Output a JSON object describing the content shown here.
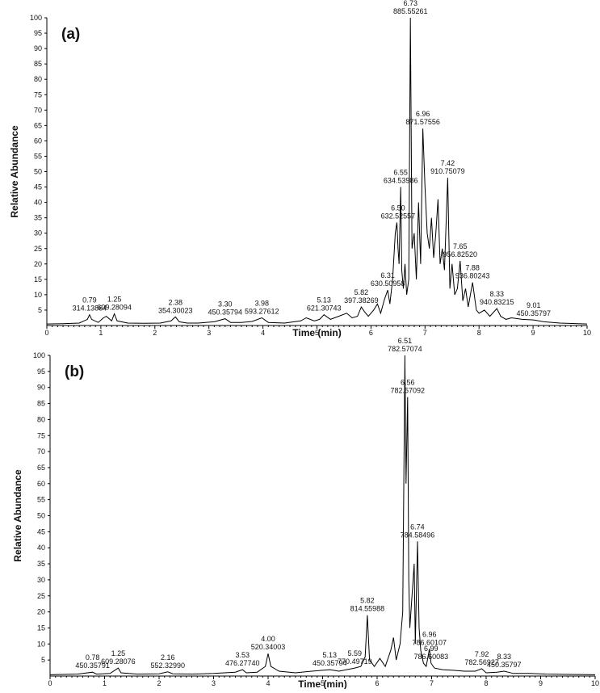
{
  "chart_data": [
    {
      "type": "line",
      "panel_label": "(a)",
      "xlabel": "Time (min)",
      "ylabel": "Relative Abundance",
      "xlim": [
        0,
        10
      ],
      "ylim": [
        0,
        100
      ],
      "x_ticks": [
        "0",
        "1",
        "2",
        "3",
        "4",
        "5",
        "6",
        "7",
        "8",
        "9",
        "10"
      ],
      "y_ticks": [
        "5",
        "10",
        "15",
        "20",
        "25",
        "30",
        "35",
        "40",
        "45",
        "50",
        "55",
        "60",
        "65",
        "70",
        "75",
        "80",
        "85",
        "90",
        "95",
        "100"
      ],
      "grid": false,
      "series": [
        {
          "x": [
            0,
            0.3,
            0.6,
            0.75,
            0.79,
            0.83,
            0.95,
            1.05,
            1.1,
            1.2,
            1.25,
            1.3,
            1.5,
            1.8,
            2.1,
            2.3,
            2.38,
            2.45,
            2.6,
            2.8,
            3.1,
            3.3,
            3.4,
            3.6,
            3.8,
            3.98,
            4.1,
            4.4,
            4.7,
            4.8,
            4.95,
            5.05,
            5.13,
            5.25,
            5.4,
            5.55,
            5.65,
            5.75,
            5.82,
            5.88,
            5.95,
            6.05,
            6.12,
            6.18,
            6.25,
            6.31,
            6.35,
            6.4,
            6.45,
            6.48,
            6.5,
            6.52,
            6.55,
            6.57,
            6.6,
            6.63,
            6.66,
            6.7,
            6.73,
            6.76,
            6.8,
            6.84,
            6.88,
            6.92,
            6.96,
            7.0,
            7.04,
            7.08,
            7.12,
            7.16,
            7.2,
            7.24,
            7.28,
            7.32,
            7.36,
            7.42,
            7.46,
            7.5,
            7.55,
            7.6,
            7.65,
            7.7,
            7.75,
            7.8,
            7.88,
            7.95,
            8.0,
            8.1,
            8.2,
            8.33,
            8.4,
            8.5,
            8.6,
            8.8,
            9.01,
            9.2,
            9.5,
            10
          ],
          "y": [
            0.5,
            0.6,
            0.8,
            2.0,
            3.5,
            2.0,
            1.0,
            2.5,
            3.0,
            1.5,
            3.8,
            1.5,
            0.8,
            0.7,
            0.8,
            1.5,
            2.8,
            1.2,
            0.8,
            0.8,
            1.2,
            2.2,
            1.0,
            1.0,
            1.3,
            2.5,
            1.0,
            0.8,
            1.5,
            2.5,
            1.5,
            2.0,
            3.5,
            2.0,
            3.0,
            4.0,
            2.5,
            3.0,
            6.0,
            4.5,
            3.0,
            5.0,
            7.0,
            4.0,
            8.5,
            11.5,
            7.0,
            15.0,
            30.0,
            33.5,
            25.0,
            20.0,
            45.0,
            18.0,
            12.0,
            20.0,
            10.0,
            15.0,
            100.0,
            25.0,
            30.0,
            15.0,
            40.0,
            20.0,
            64.0,
            45.0,
            30.0,
            25.0,
            35.0,
            22.0,
            30.0,
            41.0,
            20.0,
            25.0,
            18.0,
            48.0,
            12.0,
            20.0,
            10.0,
            12.0,
            21.0,
            8.0,
            12.0,
            6.0,
            14.0,
            5.0,
            4.0,
            5.0,
            3.0,
            5.5,
            3.0,
            2.0,
            2.5,
            2.0,
            1.8,
            1.2,
            0.8,
            0.5
          ]
        }
      ],
      "annotations": [
        {
          "x": 0.79,
          "y": 3.5,
          "rt": "0.79",
          "mz": "314.13864"
        },
        {
          "x": 1.25,
          "y": 3.8,
          "rt": "1.25",
          "mz": "609.28094"
        },
        {
          "x": 2.38,
          "y": 2.8,
          "rt": "2.38",
          "mz": "354.30023"
        },
        {
          "x": 3.3,
          "y": 2.2,
          "rt": "3.30",
          "mz": "450.35794"
        },
        {
          "x": 3.98,
          "y": 2.5,
          "rt": "3.98",
          "mz": "593.27612"
        },
        {
          "x": 5.13,
          "y": 3.5,
          "rt": "5.13",
          "mz": "621.30743"
        },
        {
          "x": 5.82,
          "y": 6.0,
          "rt": "5.82",
          "mz": "397.38269"
        },
        {
          "x": 6.31,
          "y": 11.5,
          "rt": "6.31",
          "mz": "630.50958"
        },
        {
          "x": 6.5,
          "y": 33.5,
          "rt": "6.50",
          "mz": "632.52557"
        },
        {
          "x": 6.55,
          "y": 45.0,
          "rt": "6.55",
          "mz": "634.53986"
        },
        {
          "x": 6.73,
          "y": 100.0,
          "rt": "6.73",
          "mz": "885.55261"
        },
        {
          "x": 6.96,
          "y": 64.0,
          "rt": "6.96",
          "mz": "871.57556"
        },
        {
          "x": 7.42,
          "y": 48.0,
          "rt": "7.42",
          "mz": "910.75079"
        },
        {
          "x": 7.65,
          "y": 21.0,
          "rt": "7.65",
          "mz": "956.82520"
        },
        {
          "x": 7.88,
          "y": 14.0,
          "rt": "7.88",
          "mz": "936.80243"
        },
        {
          "x": 8.33,
          "y": 5.5,
          "rt": "8.33",
          "mz": "940.83215"
        },
        {
          "x": 9.01,
          "y": 1.8,
          "rt": "9.01",
          "mz": "450.35797"
        }
      ]
    },
    {
      "type": "line",
      "panel_label": "(b)",
      "xlabel": "Time (min)",
      "ylabel": "Relative Abundance",
      "xlim": [
        0,
        10
      ],
      "ylim": [
        0,
        100
      ],
      "x_ticks": [
        "0",
        "1",
        "2",
        "3",
        "4",
        "5",
        "6",
        "7",
        "8",
        "9",
        "10"
      ],
      "y_ticks": [
        "5",
        "10",
        "15",
        "20",
        "25",
        "30",
        "35",
        "40",
        "45",
        "50",
        "55",
        "60",
        "65",
        "70",
        "75",
        "80",
        "85",
        "90",
        "95",
        "100"
      ],
      "grid": false,
      "series": [
        {
          "x": [
            0,
            0.5,
            0.78,
            0.85,
            1.1,
            1.25,
            1.3,
            1.6,
            2.0,
            2.16,
            2.25,
            2.6,
            3.0,
            3.4,
            3.53,
            3.6,
            3.8,
            3.95,
            4.0,
            4.05,
            4.2,
            4.5,
            4.8,
            5.13,
            5.3,
            5.59,
            5.7,
            5.78,
            5.82,
            5.86,
            5.95,
            6.05,
            6.15,
            6.25,
            6.3,
            6.35,
            6.42,
            6.47,
            6.51,
            6.53,
            6.56,
            6.58,
            6.6,
            6.64,
            6.68,
            6.7,
            6.74,
            6.77,
            6.8,
            6.85,
            6.9,
            6.96,
            6.99,
            7.05,
            7.2,
            7.4,
            7.6,
            7.8,
            7.92,
            8.0,
            8.2,
            8.33,
            8.5,
            8.8,
            9.1,
            9.5,
            10
          ],
          "y": [
            0.4,
            0.6,
            1.2,
            0.6,
            0.8,
            2.5,
            1.0,
            0.6,
            0.7,
            1.3,
            0.7,
            0.6,
            0.8,
            1.2,
            2.0,
            1.0,
            1.2,
            3.0,
            7.0,
            3.0,
            1.5,
            1.0,
            1.5,
            2.0,
            1.5,
            2.5,
            3.0,
            6.0,
            19.0,
            5.0,
            3.0,
            5.5,
            3.0,
            8.0,
            12.0,
            5.0,
            10.0,
            20.0,
            100.0,
            60.0,
            87.0,
            30.0,
            15.0,
            25.0,
            35.0,
            10.0,
            42.0,
            15.0,
            8.0,
            4.0,
            3.0,
            8.5,
            4.0,
            2.5,
            2.0,
            1.8,
            1.5,
            1.5,
            2.3,
            1.0,
            1.2,
            1.5,
            0.8,
            0.8,
            0.6,
            0.5,
            0.4
          ]
        }
      ],
      "annotations": [
        {
          "x": 0.78,
          "y": 1.2,
          "rt": "0.78",
          "mz": "450.35791"
        },
        {
          "x": 1.25,
          "y": 2.5,
          "rt": "1.25",
          "mz": "609.28076"
        },
        {
          "x": 2.16,
          "y": 1.3,
          "rt": "2.16",
          "mz": "552.32990"
        },
        {
          "x": 3.53,
          "y": 2.0,
          "rt": "3.53",
          "mz": "476.27740"
        },
        {
          "x": 4.0,
          "y": 7.0,
          "rt": "4.00",
          "mz": "520.34003"
        },
        {
          "x": 5.13,
          "y": 2.0,
          "rt": "5.13",
          "mz": "450.35794"
        },
        {
          "x": 5.59,
          "y": 2.5,
          "rt": "5.59",
          "mz": "770.49719"
        },
        {
          "x": 5.82,
          "y": 19.0,
          "rt": "5.82",
          "mz": "814.55988"
        },
        {
          "x": 6.51,
          "y": 100.0,
          "rt": "6.51",
          "mz": "782.57074"
        },
        {
          "x": 6.56,
          "y": 87.0,
          "rt": "6.56",
          "mz": "782.57092"
        },
        {
          "x": 6.74,
          "y": 42.0,
          "rt": "6.74",
          "mz": "784.58496"
        },
        {
          "x": 6.96,
          "y": 8.5,
          "rt": "6.96",
          "mz": "786.60107"
        },
        {
          "x": 6.99,
          "y": 4.0,
          "rt": "6.99",
          "mz": "786.60083"
        },
        {
          "x": 7.92,
          "y": 2.3,
          "rt": "7.92",
          "mz": "782.56927"
        },
        {
          "x": 8.33,
          "y": 1.5,
          "rt": "8.33",
          "mz": "450.35797"
        }
      ]
    }
  ]
}
